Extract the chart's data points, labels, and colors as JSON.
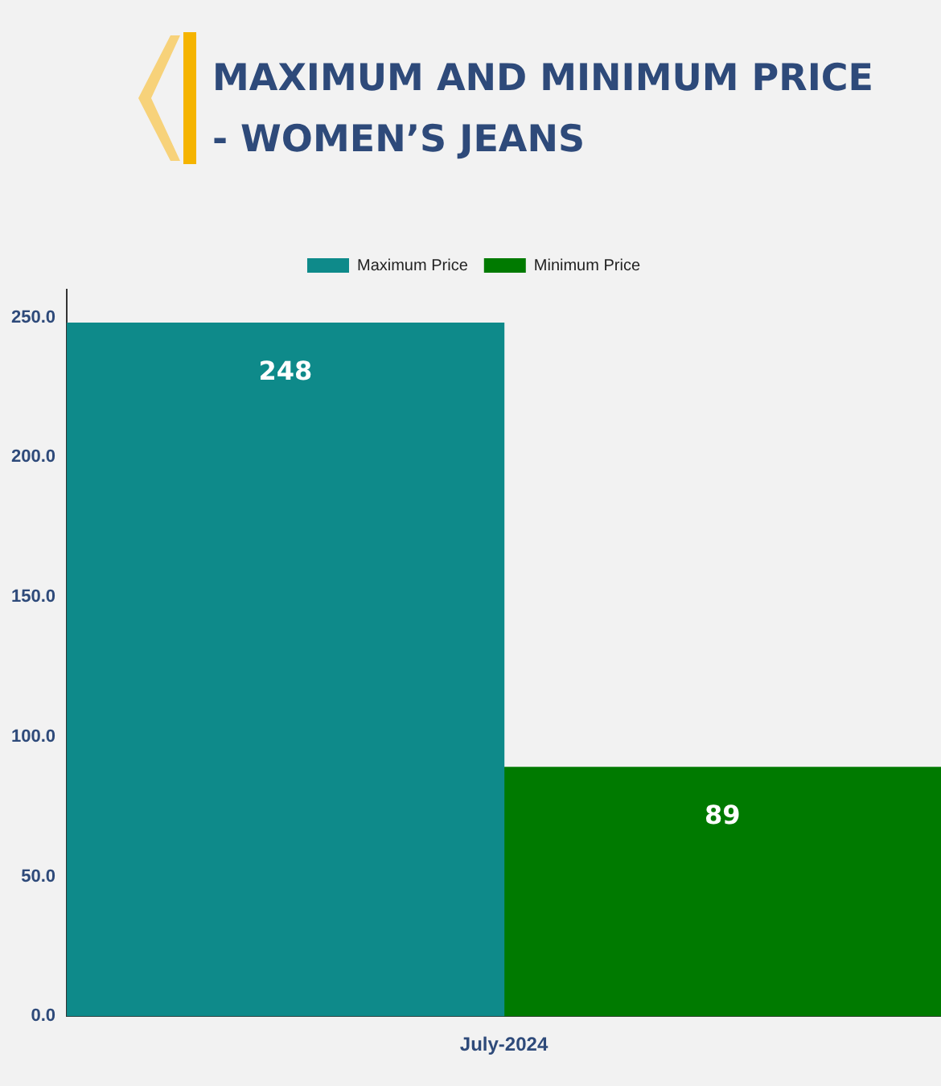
{
  "chart_data": {
    "type": "bar",
    "title": "MAXIMUM AND MINIMUM PRICE - WOMEN’S JEANS",
    "categories": [
      "July-2024"
    ],
    "series": [
      {
        "name": "Maximum Price",
        "color": "#0e8a8a",
        "values": [
          248
        ]
      },
      {
        "name": "Minimum Price",
        "color": "#007a00",
        "values": [
          89
        ]
      }
    ],
    "ylim": [
      0,
      260
    ],
    "yticks": [
      {
        "value": 0,
        "label": "0.0"
      },
      {
        "value": 50,
        "label": "50.0"
      },
      {
        "value": 100,
        "label": "100.0"
      },
      {
        "value": 150,
        "label": "150.0"
      },
      {
        "value": 200,
        "label": "200.0"
      },
      {
        "value": 250,
        "label": "250.0"
      }
    ],
    "grid": false,
    "legend": "top",
    "data_labels": true
  }
}
